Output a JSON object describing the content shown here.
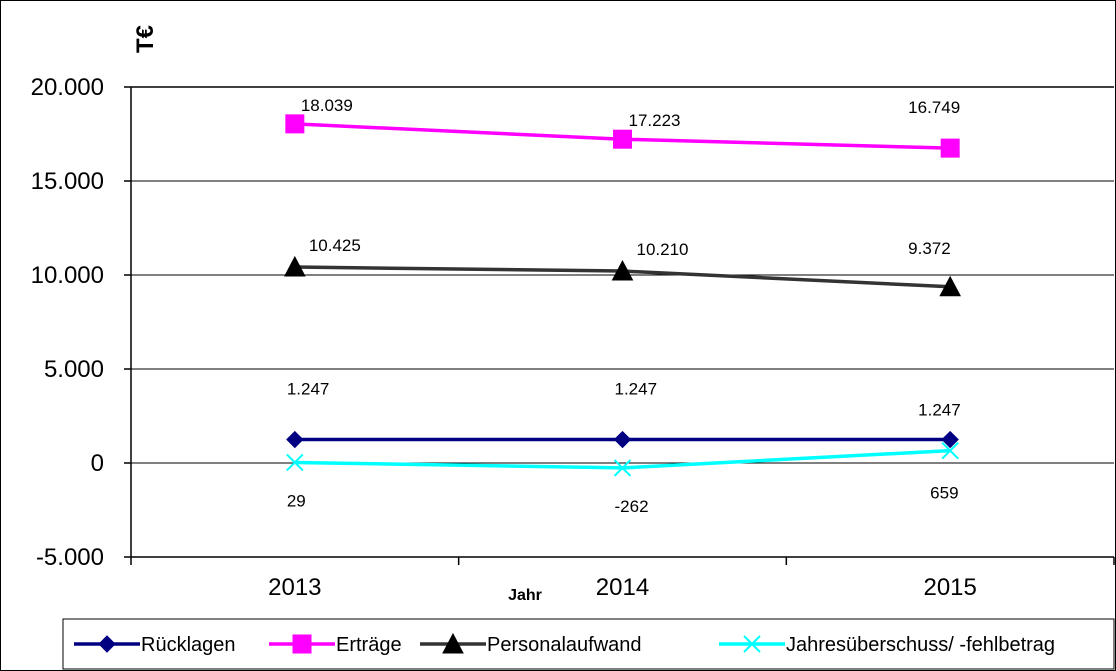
{
  "chart_data": {
    "type": "line",
    "categories": [
      "2013",
      "2014",
      "2015"
    ],
    "xlabel": "Jahr",
    "ylabel": "T€",
    "ylim": [
      -5000,
      20000
    ],
    "y_tick_labels": [
      "-5.000",
      "0",
      "5.000",
      "10.000",
      "15.000",
      "20.000"
    ],
    "y_tick_values": [
      -5000,
      0,
      5000,
      10000,
      15000,
      20000
    ],
    "grid": true,
    "legend_position": "bottom",
    "series": [
      {
        "name": "Rücklagen",
        "values": [
          1247,
          1247,
          1247
        ],
        "labels": [
          "1.247",
          "1.247",
          "1.247"
        ],
        "color": "#000080",
        "marker": "diamond"
      },
      {
        "name": "Erträge",
        "values": [
          18039,
          17223,
          16749
        ],
        "labels": [
          "18.039",
          "17.223",
          "16.749"
        ],
        "color": "#FF00FF",
        "marker": "square"
      },
      {
        "name": "Personalaufwand",
        "values": [
          10425,
          10210,
          9372
        ],
        "labels": [
          "10.425",
          "10.210",
          "9.372"
        ],
        "color": "#000000",
        "line_color": "#333333",
        "marker": "triangle"
      },
      {
        "name": "Jahresüberschuss/ -fehlbetrag",
        "values": [
          29,
          -262,
          659
        ],
        "labels": [
          "29",
          "-262",
          "659"
        ],
        "color": "#00FFFF",
        "marker": "x"
      }
    ]
  }
}
